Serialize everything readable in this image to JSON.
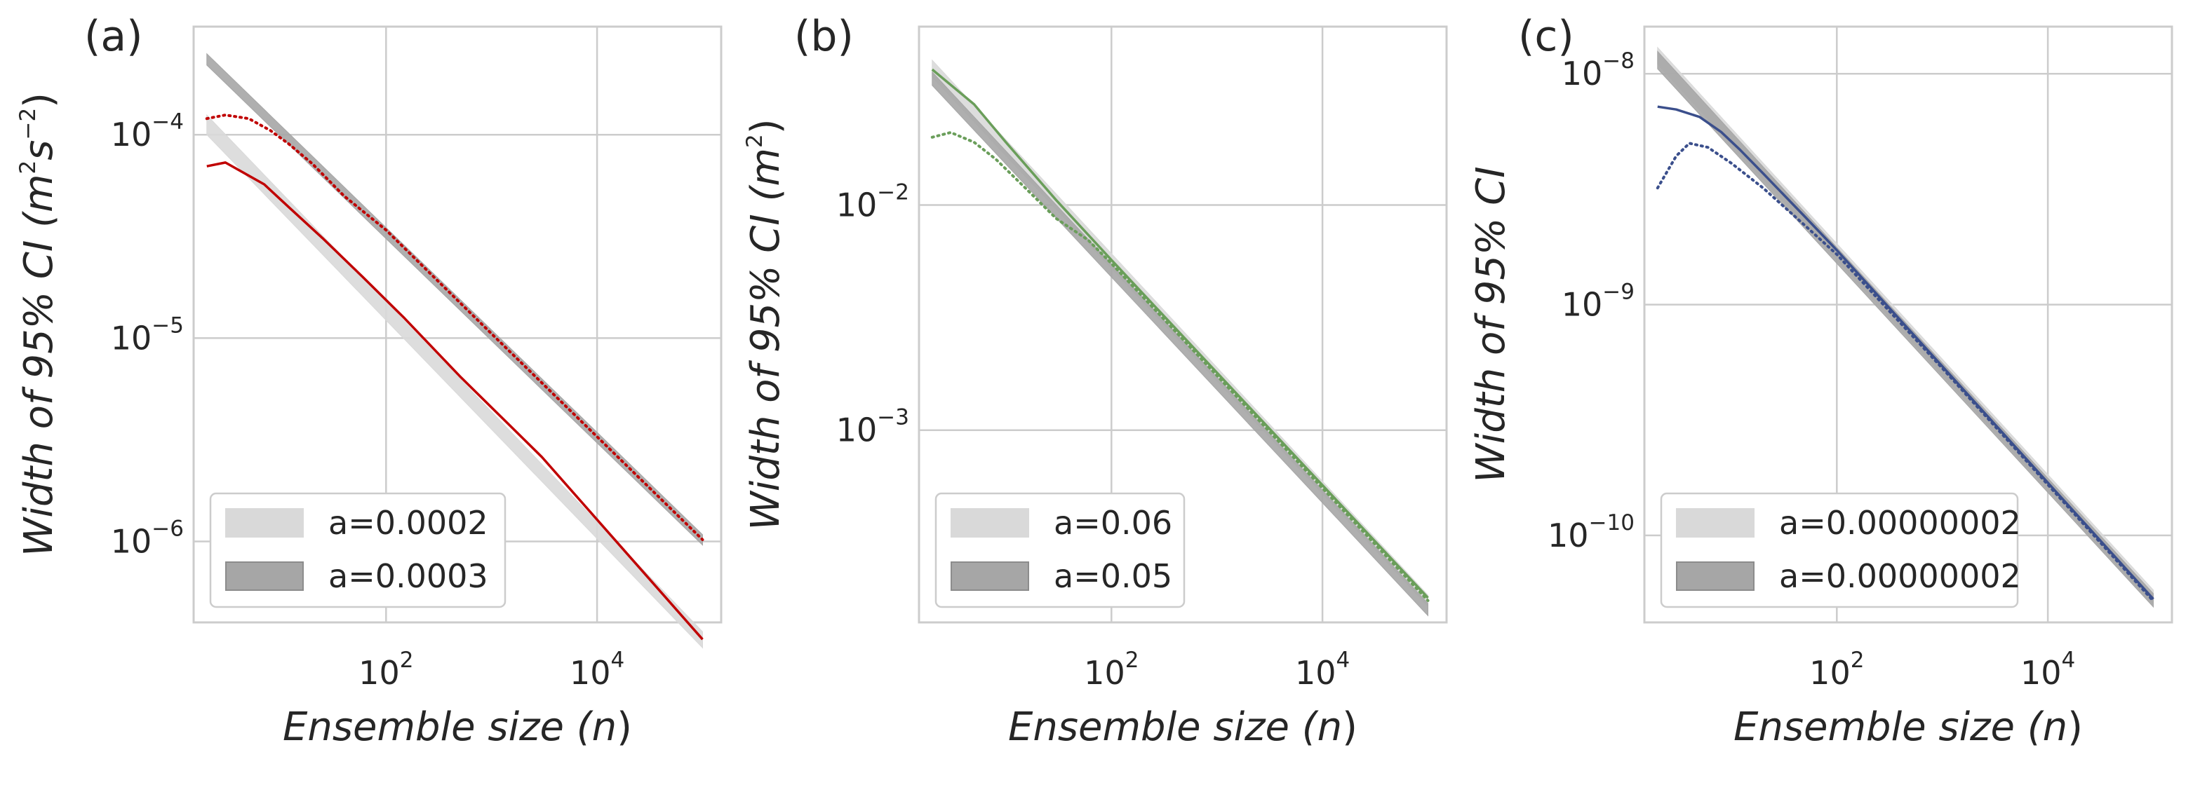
{
  "chart_data": [
    {
      "panel_label": "(a)",
      "type": "line",
      "xscale": "log",
      "yscale": "log",
      "xlim": [
        1.5,
        150000
      ],
      "ylim": [
        4e-07,
        0.00034
      ],
      "xticks": [
        {
          "value": 100,
          "exp": "2"
        },
        {
          "value": 10000,
          "exp": "4"
        }
      ],
      "yticks": [
        {
          "value": 1e-06,
          "exp": "−6"
        },
        {
          "value": 1e-05,
          "exp": "−5"
        },
        {
          "value": 0.0001,
          "exp": "−4"
        }
      ],
      "xlabel": {
        "pre": "Ensemble size (",
        "var": "n",
        "post": ")"
      },
      "ylabel": {
        "pre": "Width of 95% CI (",
        "unit": "m",
        "e1": "2",
        "unit2": "s",
        "e2": "−2",
        "post": ")"
      },
      "grid": true,
      "legend_position": "lower-left",
      "bands": [
        {
          "label": "a=0.0002",
          "color": "#d9d9d9",
          "x": [
            2,
            100000
          ],
          "lower": [
            0.0001,
            3e-07
          ],
          "upper": [
            0.000125,
            3.6e-07
          ]
        },
        {
          "label": "a=0.0003",
          "color": "#a6a6a6",
          "x": [
            2,
            100000
          ],
          "lower": [
            0.00022,
            9.6e-07
          ],
          "upper": [
            0.00025,
            1.08e-06
          ]
        }
      ],
      "lines": [
        {
          "style": "solid",
          "color": "#c00000",
          "x": [
            2,
            3,
            7,
            12,
            25,
            60,
            150,
            500,
            3000,
            100000
          ],
          "y": [
            7e-05,
            7.3e-05,
            5.7e-05,
            4.4e-05,
            3.1e-05,
            2e-05,
            1.25e-05,
            6.5e-06,
            2.6e-06,
            3.3e-07
          ]
        },
        {
          "style": "dotted",
          "color": "#c00000",
          "x": [
            2,
            3,
            5,
            8,
            12,
            20,
            40,
            100,
            1000,
            100000
          ],
          "y": [
            0.00012,
            0.000125,
            0.00012,
            0.000105,
            9e-05,
            7.2e-05,
            5e-05,
            3.4e-05,
            1.05e-05,
            1.02e-06
          ]
        }
      ]
    },
    {
      "panel_label": "(b)",
      "type": "line",
      "xscale": "log",
      "yscale": "log",
      "xlim": [
        1.5,
        150000
      ],
      "ylim": [
        0.00014,
        0.062
      ],
      "xticks": [
        {
          "value": 100,
          "exp": "2"
        },
        {
          "value": 10000,
          "exp": "4"
        }
      ],
      "yticks": [
        {
          "value": 0.001,
          "exp": "−3"
        },
        {
          "value": 0.01,
          "exp": "−2"
        }
      ],
      "xlabel": {
        "pre": "Ensemble size (",
        "var": "n",
        "post": ")"
      },
      "ylabel": {
        "pre": "Width of 95% CI (",
        "unit": "m",
        "e1": "2",
        "unit2": "",
        "e2": "",
        "post": ")"
      },
      "grid": true,
      "legend_position": "lower-left",
      "bands": [
        {
          "label": "a=0.06",
          "color": "#d9d9d9",
          "x": [
            2,
            100000
          ],
          "lower": [
            0.037,
            0.000165
          ],
          "upper": [
            0.044,
            0.000185
          ]
        },
        {
          "label": "a=0.05",
          "color": "#a6a6a6",
          "x": [
            2,
            100000
          ],
          "lower": [
            0.034,
            0.00015
          ],
          "upper": [
            0.039,
            0.00017
          ]
        }
      ],
      "lines": [
        {
          "style": "solid",
          "color": "#6a9e5a",
          "x": [
            2,
            5,
            10,
            30,
            100,
            1000,
            100000
          ],
          "y": [
            0.04,
            0.028,
            0.019,
            0.0105,
            0.0057,
            0.0018,
            0.00018
          ]
        },
        {
          "style": "dotted",
          "color": "#6a9e5a",
          "x": [
            2,
            3,
            5,
            8,
            15,
            30,
            60,
            100,
            1000,
            100000
          ],
          "y": [
            0.02,
            0.021,
            0.019,
            0.016,
            0.012,
            0.0087,
            0.007,
            0.0055,
            0.00175,
            0.000175
          ]
        }
      ]
    },
    {
      "panel_label": "(c)",
      "type": "line",
      "xscale": "log",
      "yscale": "log",
      "xlim": [
        1.5,
        150000
      ],
      "ylim": [
        4.2e-11,
        1.6e-08
      ],
      "xticks": [
        {
          "value": 100,
          "exp": "2"
        },
        {
          "value": 10000,
          "exp": "4"
        }
      ],
      "yticks": [
        {
          "value": 1e-10,
          "exp": "−10"
        },
        {
          "value": 1e-09,
          "exp": "−9"
        },
        {
          "value": 1e-08,
          "exp": "−8"
        }
      ],
      "xlabel": {
        "pre": "Ensemble size (",
        "var": "n",
        "post": ")"
      },
      "ylabel": {
        "pre": "Width of 95% CI",
        "unit": "",
        "e1": "",
        "unit2": "",
        "e2": "",
        "post": ""
      },
      "grid": true,
      "legend_position": "lower-left",
      "bands": [
        {
          "label": "a=0.00000002",
          "color": "#d9d9d9",
          "x": [
            2,
            100000
          ],
          "lower": [
            1.1e-08,
            5e-11
          ],
          "upper": [
            1.3e-08,
            5.8e-11
          ]
        },
        {
          "label": "a=0.00000002",
          "color": "#a6a6a6",
          "x": [
            2,
            100000
          ],
          "lower": [
            1.05e-08,
            4.9e-11
          ],
          "upper": [
            1.25e-08,
            5.6e-11
          ]
        }
      ],
      "lines": [
        {
          "style": "solid",
          "color": "#3b4f8c",
          "x": [
            2,
            3,
            5,
            8,
            12,
            20,
            50,
            100,
            1000,
            100000
          ],
          "y": [
            7.2e-09,
            7e-09,
            6.5e-09,
            5.6e-09,
            4.7e-09,
            3.7e-09,
            2.4e-09,
            1.72e-09,
            5.4e-10,
            5.3e-11
          ]
        },
        {
          "style": "dotted",
          "color": "#3b4f8c",
          "x": [
            2,
            3,
            4,
            6,
            10,
            20,
            50,
            100,
            1000,
            100000
          ],
          "y": [
            3.2e-09,
            4.4e-09,
            5e-09,
            4.8e-09,
            4.1e-09,
            3.2e-09,
            2.2e-09,
            1.65e-09,
            5.3e-10,
            5.2e-11
          ]
        }
      ]
    }
  ]
}
